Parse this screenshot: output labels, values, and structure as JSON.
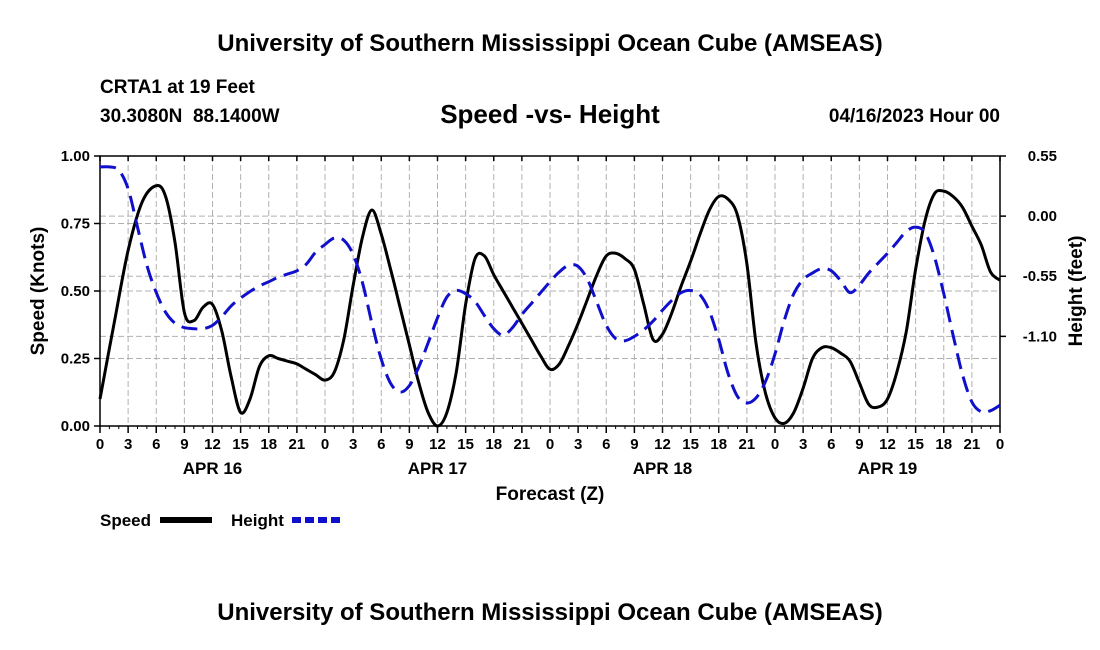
{
  "header": {
    "title": "University of Southern Mississippi Ocean Cube (AMSEAS)",
    "station": "CRTA1 at 19 Feet",
    "coords": "30.3080N  88.1400W",
    "date": "04/16/2023 Hour 00"
  },
  "footer": {
    "title": "University of Southern Mississippi Ocean Cube (AMSEAS)"
  },
  "colors": {
    "speed": "#000000",
    "height": "#1010cc",
    "grid": "#b0b0b0"
  },
  "chart_data": {
    "type": "line",
    "title": "Speed -vs- Height",
    "xlabel": "Forecast (Z)",
    "ylabel": "Speed (Knots)",
    "y2label": "Height (feet)",
    "xlim": [
      0,
      96
    ],
    "ylim": [
      0,
      1
    ],
    "y2lim": [
      -1.92,
      0.55
    ],
    "x_ticks": [
      0,
      3,
      6,
      9,
      12,
      15,
      18,
      21,
      24,
      27,
      30,
      33,
      36,
      39,
      42,
      45,
      48,
      51,
      54,
      57,
      60,
      63,
      66,
      69,
      72,
      75,
      78,
      81,
      84,
      87,
      90,
      93,
      96
    ],
    "x_tick_labels": [
      "0",
      "3",
      "6",
      "9",
      "12",
      "15",
      "18",
      "21",
      "0",
      "3",
      "6",
      "9",
      "12",
      "15",
      "18",
      "21",
      "0",
      "3",
      "6",
      "9",
      "12",
      "15",
      "18",
      "21",
      "0",
      "3",
      "6",
      "9",
      "12",
      "15",
      "18",
      "21",
      "0"
    ],
    "day_labels": [
      {
        "x": 12,
        "label": "APR 16"
      },
      {
        "x": 36,
        "label": "APR 17"
      },
      {
        "x": 60,
        "label": "APR 18"
      },
      {
        "x": 84,
        "label": "APR 19"
      }
    ],
    "y_ticks": [
      0,
      0.25,
      0.5,
      0.75,
      1.0
    ],
    "y_tick_labels": [
      "0.00",
      "0.25",
      "0.50",
      "0.75",
      "1.00"
    ],
    "y2_ticks": [
      0.55,
      0.0,
      -0.55,
      -1.1
    ],
    "y2_tick_labels": [
      "0.55",
      "0.00",
      "-0.55",
      "-1.10"
    ],
    "series": [
      {
        "name": "Speed",
        "axis": "left",
        "style": "solid",
        "x": [
          0,
          1.5,
          3,
          4.5,
          6,
          7,
          8,
          9,
          10,
          11,
          12,
          13,
          14,
          15,
          16,
          17,
          18,
          19,
          20,
          21,
          22,
          23,
          24,
          25,
          26,
          27,
          28,
          29,
          30,
          31,
          32,
          33,
          34,
          35,
          36,
          37,
          38,
          39,
          40,
          41,
          42,
          43,
          44,
          45,
          46,
          47,
          48,
          49,
          50,
          51,
          52,
          53,
          54,
          55,
          56,
          57,
          58,
          59,
          60,
          61,
          62,
          63,
          64,
          65,
          66,
          67,
          68,
          69,
          70,
          71,
          72,
          73,
          74,
          75,
          76,
          77,
          78,
          79,
          80,
          81,
          82,
          83,
          84,
          85,
          86,
          87,
          88,
          89,
          90,
          91,
          92,
          93,
          94,
          95,
          96
        ],
        "values": [
          0.1,
          0.38,
          0.65,
          0.83,
          0.89,
          0.85,
          0.68,
          0.42,
          0.39,
          0.44,
          0.45,
          0.35,
          0.18,
          0.05,
          0.1,
          0.22,
          0.26,
          0.25,
          0.24,
          0.23,
          0.21,
          0.19,
          0.17,
          0.2,
          0.32,
          0.52,
          0.7,
          0.8,
          0.71,
          0.58,
          0.44,
          0.3,
          0.16,
          0.05,
          0.0,
          0.05,
          0.2,
          0.45,
          0.62,
          0.63,
          0.56,
          0.5,
          0.44,
          0.38,
          0.32,
          0.26,
          0.21,
          0.23,
          0.3,
          0.38,
          0.47,
          0.56,
          0.63,
          0.64,
          0.62,
          0.58,
          0.45,
          0.32,
          0.34,
          0.42,
          0.52,
          0.61,
          0.71,
          0.8,
          0.85,
          0.84,
          0.78,
          0.6,
          0.3,
          0.12,
          0.03,
          0.01,
          0.05,
          0.14,
          0.25,
          0.29,
          0.29,
          0.27,
          0.24,
          0.16,
          0.08,
          0.07,
          0.1,
          0.2,
          0.35,
          0.58,
          0.76,
          0.86,
          0.87,
          0.85,
          0.81,
          0.74,
          0.67,
          0.57,
          0.54
        ]
      },
      {
        "name": "Height",
        "axis": "right",
        "style": "dashed",
        "x": [
          0,
          1,
          2,
          3,
          4,
          5,
          6,
          7,
          8,
          9,
          10,
          11,
          12,
          13,
          14,
          15,
          16,
          17,
          18,
          19,
          20,
          21,
          22,
          23,
          24,
          25,
          26,
          27,
          28,
          29,
          30,
          31,
          32,
          33,
          34,
          35,
          36,
          37,
          38,
          39,
          40,
          41,
          42,
          43,
          44,
          45,
          46,
          47,
          48,
          49,
          50,
          51,
          52,
          53,
          54,
          55,
          56,
          57,
          58,
          59,
          60,
          61,
          62,
          63,
          64,
          65,
          66,
          67,
          68,
          69,
          70,
          71,
          72,
          73,
          74,
          75,
          76,
          77,
          78,
          79,
          80,
          81,
          82,
          83,
          84,
          85,
          86,
          87,
          88,
          89,
          90,
          91,
          92,
          93,
          94,
          95,
          96
        ],
        "values": [
          0.45,
          0.45,
          0.42,
          0.25,
          -0.1,
          -0.45,
          -0.7,
          -0.88,
          -0.98,
          -1.02,
          -1.03,
          -1.03,
          -1.0,
          -0.92,
          -0.82,
          -0.75,
          -0.69,
          -0.64,
          -0.6,
          -0.56,
          -0.53,
          -0.5,
          -0.44,
          -0.33,
          -0.26,
          -0.2,
          -0.22,
          -0.35,
          -0.61,
          -0.98,
          -1.31,
          -1.53,
          -1.61,
          -1.55,
          -1.38,
          -1.16,
          -0.93,
          -0.74,
          -0.68,
          -0.71,
          -0.78,
          -0.91,
          -1.03,
          -1.09,
          -1.02,
          -0.9,
          -0.8,
          -0.7,
          -0.6,
          -0.51,
          -0.45,
          -0.46,
          -0.58,
          -0.79,
          -1.0,
          -1.12,
          -1.14,
          -1.1,
          -1.04,
          -0.96,
          -0.86,
          -0.77,
          -0.7,
          -0.68,
          -0.72,
          -0.87,
          -1.13,
          -1.44,
          -1.65,
          -1.71,
          -1.66,
          -1.51,
          -1.26,
          -0.95,
          -0.71,
          -0.58,
          -0.52,
          -0.48,
          -0.5,
          -0.59,
          -0.7,
          -0.63,
          -0.52,
          -0.43,
          -0.34,
          -0.24,
          -0.14,
          -0.1,
          -0.15,
          -0.37,
          -0.71,
          -1.09,
          -1.45,
          -1.7,
          -1.79,
          -1.78,
          -1.73
        ]
      }
    ],
    "legend": [
      {
        "label": "Speed",
        "series": "Speed"
      },
      {
        "label": "Height",
        "series": "Height"
      }
    ],
    "legend_position": "bottom-left",
    "grid": true
  }
}
